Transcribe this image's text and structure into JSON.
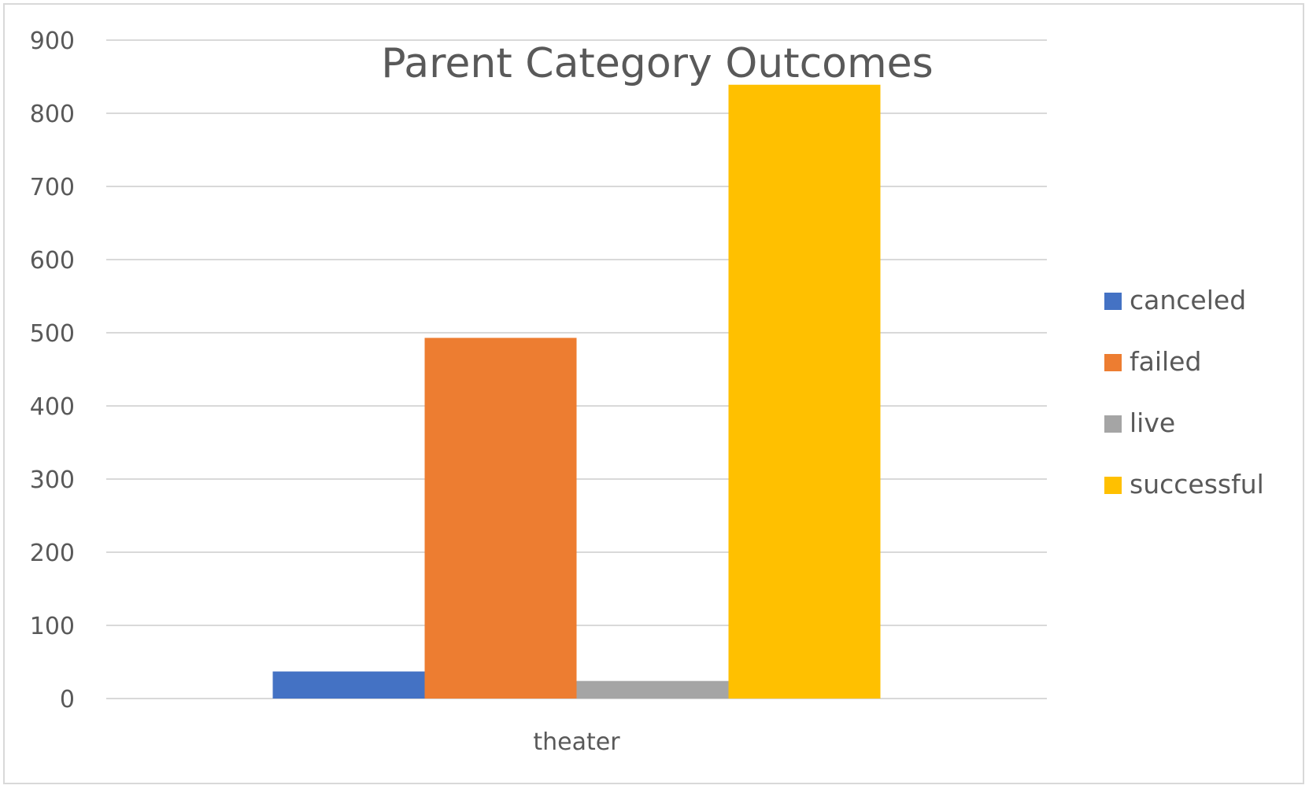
{
  "chart_data": {
    "type": "bar",
    "title": "Parent Category Outcomes",
    "xlabel": "",
    "ylabel": "",
    "categories": [
      "theater"
    ],
    "series": [
      {
        "name": "canceled",
        "color": "#4472C4",
        "values": [
          37
        ]
      },
      {
        "name": "failed",
        "color": "#ED7D31",
        "values": [
          493
        ]
      },
      {
        "name": "live",
        "color": "#A5A5A5",
        "values": [
          24
        ]
      },
      {
        "name": "successful",
        "color": "#FFC000",
        "values": [
          839
        ]
      }
    ],
    "ylim": [
      0,
      900
    ],
    "yticks": [
      0,
      100,
      200,
      300,
      400,
      500,
      600,
      700,
      800,
      900
    ],
    "grid": true,
    "legend_position": "right"
  }
}
